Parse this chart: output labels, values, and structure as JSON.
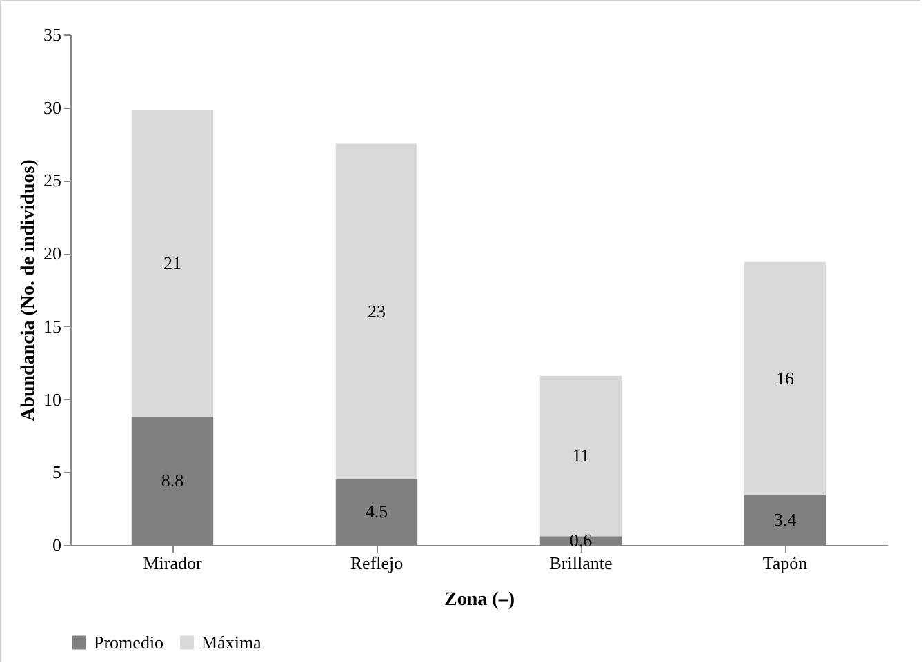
{
  "chart_data": {
    "type": "bar",
    "stacked": true,
    "xlabel": "Zona (–)",
    "ylabel": "Abundancia (No. de individuos)",
    "categories": [
      "Mirador",
      "Reflejo",
      "Brillante",
      "Tapón"
    ],
    "series": [
      {
        "name": "Promedio",
        "color": "#808080",
        "values": [
          8.8,
          4.5,
          0.6,
          3.4
        ]
      },
      {
        "name": "Máxima",
        "color": "#d9d9d9",
        "values": [
          21,
          23,
          11,
          16
        ]
      }
    ],
    "ylim": [
      0,
      35
    ],
    "yticks": [
      0,
      5,
      10,
      15,
      20,
      25,
      30,
      35
    ],
    "data_labels": true,
    "legend": "bottom"
  }
}
